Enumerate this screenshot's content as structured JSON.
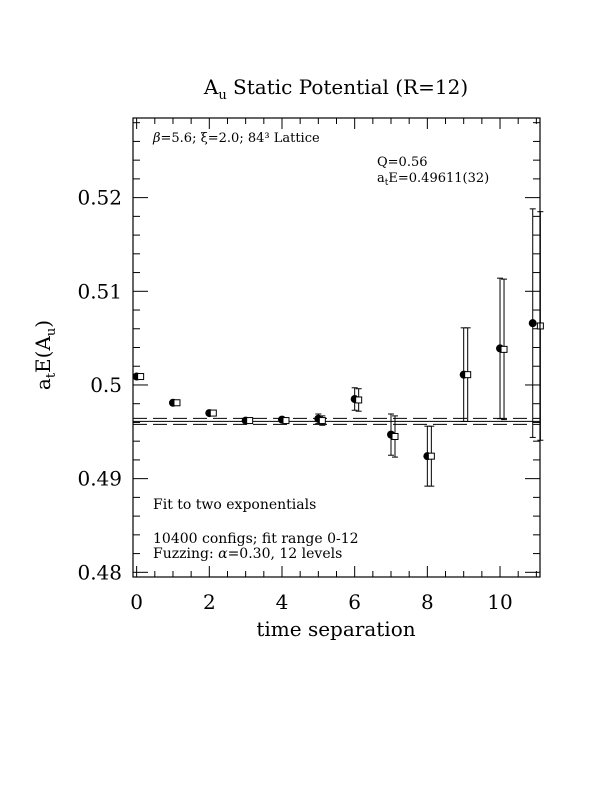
{
  "chart_data": {
    "type": "scatter",
    "title_main": "A",
    "title_sub": "u",
    "title_rest": " Static Potential (R=12)",
    "xlabel": "time separation",
    "ylabel_main": "a",
    "ylabel_sub1": "t",
    "ylabel_mid": "E(A",
    "ylabel_sub2": "u",
    "ylabel_end": ")",
    "xlim": [
      -0.1,
      11.1
    ],
    "ylim": [
      0.4795,
      0.5285
    ],
    "x_ticks": [
      0,
      2,
      4,
      6,
      8,
      10
    ],
    "x_tick_labels": [
      "0",
      "2",
      "4",
      "6",
      "8",
      "10"
    ],
    "y_ticks": [
      0.48,
      0.49,
      0.5,
      0.51,
      0.52
    ],
    "y_tick_labels": [
      "0.48",
      "0.49",
      "0.5",
      "0.51",
      "0.52"
    ],
    "annotations": {
      "lattice_beta": "β",
      "lattice_a": "=5.6; ",
      "lattice_xi": "ξ",
      "lattice_b": "=2.0; 8",
      "lattice_sup": "4",
      "lattice_exp": "3",
      "lattice_c": " Lattice",
      "lattice_text": "=5.6; ξ=2.0; 84³ Lattice",
      "q_value": "Q=0.56",
      "energy_a": "a",
      "energy_sub": "t",
      "energy_b": "E=0.49611(32)",
      "fit_text": "Fit to two exponentials",
      "configs_text": "10400 configs; fit range 0-12",
      "fuzzing_a": "Fuzzing: ",
      "fuzzing_alpha": "α",
      "fuzzing_b": "=0.30, 12 levels"
    },
    "fit": {
      "value": 0.49611,
      "error": 0.00032
    },
    "series": [
      {
        "marker": "filled-circle",
        "points": [
          {
            "x": 0,
            "y": 0.5009,
            "err": 0.0002
          },
          {
            "x": 1,
            "y": 0.4981,
            "err": 0.0002
          },
          {
            "x": 2,
            "y": 0.497,
            "err": 0.0002
          },
          {
            "x": 3,
            "y": 0.4962,
            "err": 0.0002
          },
          {
            "x": 4,
            "y": 0.4963,
            "err": 0.0003
          },
          {
            "x": 5,
            "y": 0.4964,
            "err": 0.0005
          },
          {
            "x": 6,
            "y": 0.4985,
            "err": 0.0012
          },
          {
            "x": 7,
            "y": 0.4947,
            "err": 0.0022
          },
          {
            "x": 8,
            "y": 0.4924,
            "err": 0.0032
          },
          {
            "x": 9,
            "y": 0.5011,
            "err": 0.005
          },
          {
            "x": 10,
            "y": 0.5039,
            "err": 0.0075
          },
          {
            "x": 10.9,
            "y": 0.5066,
            "err": 0.0122
          }
        ]
      },
      {
        "marker": "open-square",
        "points": [
          {
            "x": 0,
            "y": 0.5009,
            "err": 0.0002
          },
          {
            "x": 1,
            "y": 0.4981,
            "err": 0.0002
          },
          {
            "x": 2,
            "y": 0.497,
            "err": 0.0002
          },
          {
            "x": 3,
            "y": 0.4962,
            "err": 0.0002
          },
          {
            "x": 4,
            "y": 0.4962,
            "err": 0.0003
          },
          {
            "x": 5,
            "y": 0.4962,
            "err": 0.0005
          },
          {
            "x": 6,
            "y": 0.4984,
            "err": 0.0012
          },
          {
            "x": 7,
            "y": 0.4945,
            "err": 0.0022
          },
          {
            "x": 8,
            "y": 0.4924,
            "err": 0.0032
          },
          {
            "x": 9,
            "y": 0.5011,
            "err": 0.005
          },
          {
            "x": 10,
            "y": 0.5038,
            "err": 0.0075
          },
          {
            "x": 11,
            "y": 0.5063,
            "err": 0.0122
          }
        ]
      }
    ],
    "grid": false,
    "legend": "none"
  }
}
